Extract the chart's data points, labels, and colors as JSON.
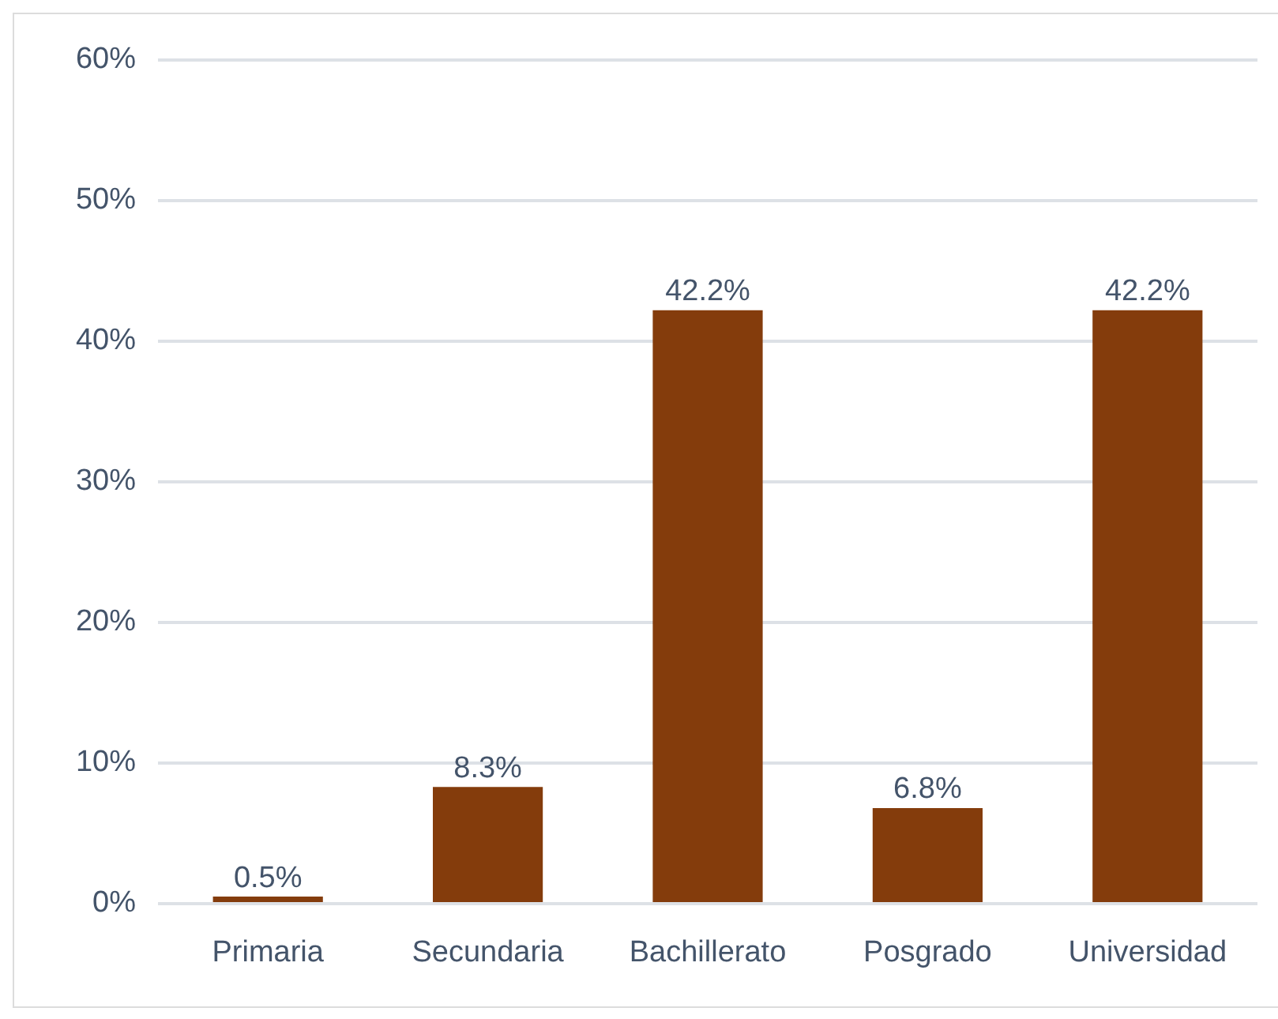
{
  "chart_data": {
    "type": "bar",
    "categories": [
      "Primaria",
      "Secundaria",
      "Bachillerato",
      "Posgrado",
      "Universidad"
    ],
    "values": [
      0.5,
      8.3,
      42.2,
      6.8,
      42.2
    ],
    "value_labels": [
      "0.5%",
      "8.3%",
      "42.2%",
      "6.8%",
      "42.2%"
    ],
    "color": "#843c0c",
    "ylim": [
      0,
      60
    ],
    "yticks": [
      {
        "value": 0,
        "label": "0%"
      },
      {
        "value": 10,
        "label": "10%"
      },
      {
        "value": 20,
        "label": "20%"
      },
      {
        "value": 30,
        "label": "30%"
      },
      {
        "value": 40,
        "label": "40%"
      },
      {
        "value": 50,
        "label": "50%"
      },
      {
        "value": 60,
        "label": "60%"
      }
    ],
    "grid": "y"
  }
}
